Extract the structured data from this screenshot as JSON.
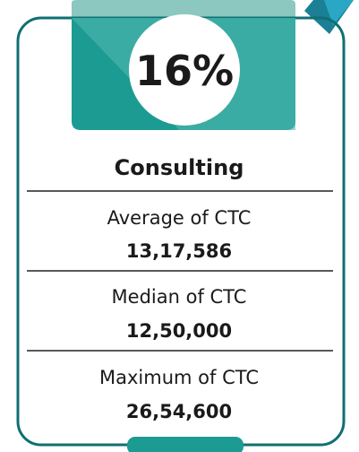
{
  "card": {
    "percent": "16%",
    "title": "Consulting",
    "stats": [
      {
        "label": "Average of CTC",
        "value": "13,17,586"
      },
      {
        "label": "Median of CTC",
        "value": "12,50,000"
      },
      {
        "label": "Maximum of CTC",
        "value": "26,54,600"
      }
    ]
  }
}
